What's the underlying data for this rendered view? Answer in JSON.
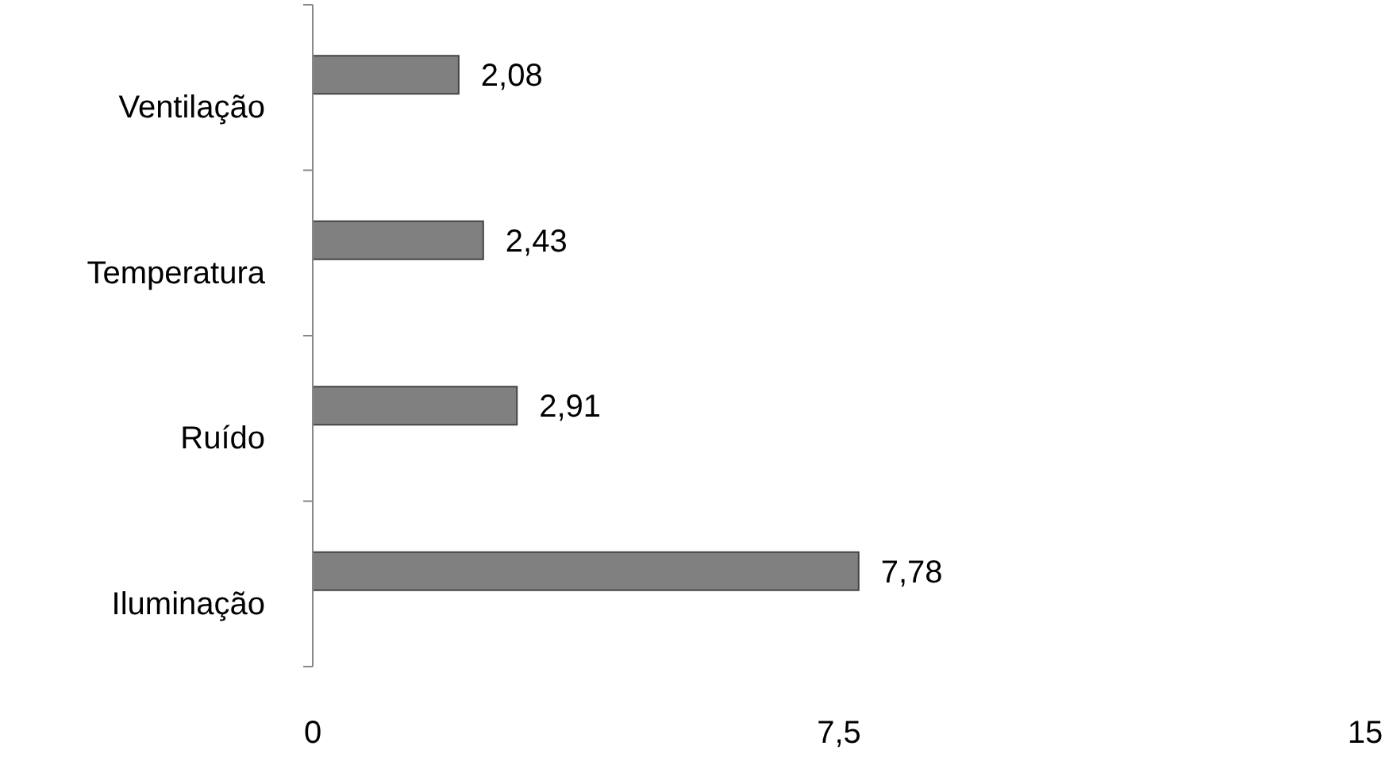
{
  "chart_data": {
    "type": "bar",
    "orientation": "horizontal",
    "categories": [
      "Ventilação",
      "Temperatura",
      "Ruído",
      "Iluminação"
    ],
    "values": [
      2.08,
      2.43,
      2.91,
      7.78
    ],
    "value_labels": [
      "2,08",
      "2,43",
      "2,91",
      "7,78"
    ],
    "color": "#808080",
    "xlim": [
      0,
      15
    ],
    "xticks": [
      0,
      {
        "value": 7.5,
        "label": "7,5"
      },
      15
    ]
  }
}
